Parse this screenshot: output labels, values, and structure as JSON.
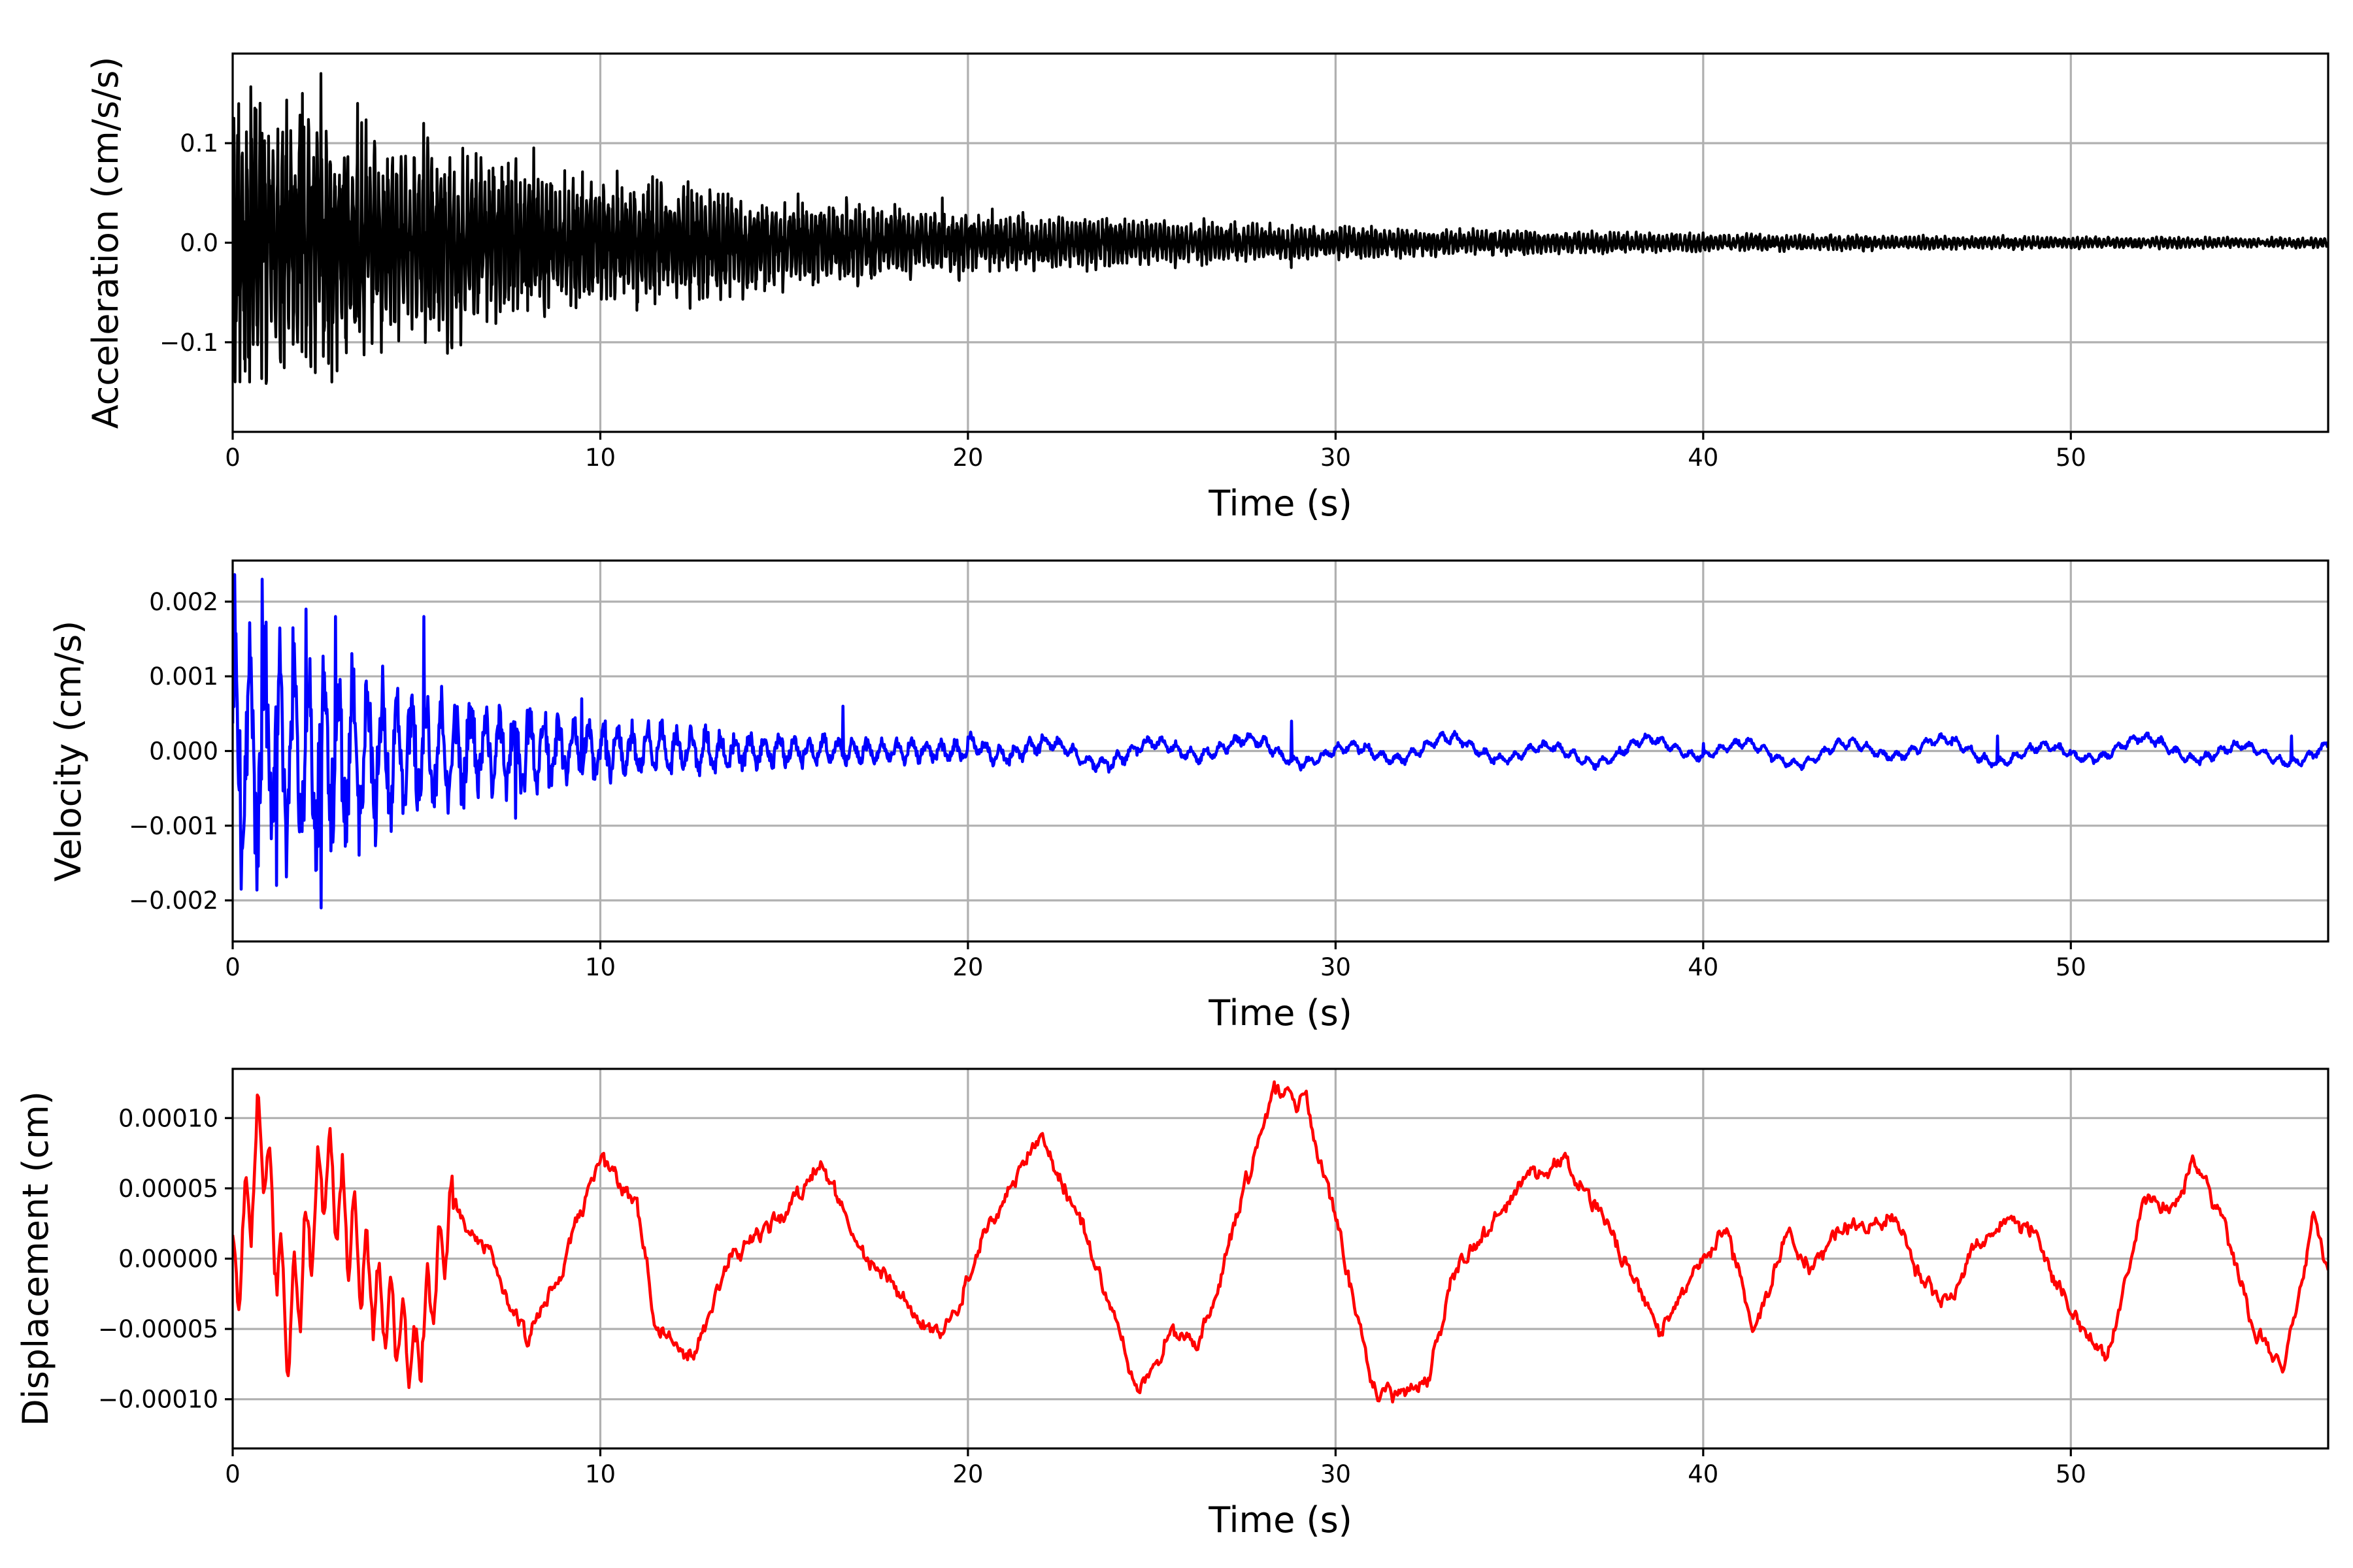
{
  "chart_data": [
    {
      "type": "line",
      "name": "acceleration",
      "title": "",
      "xlabel": "Time (s)",
      "ylabel": "Acceleration (cm/s/s)",
      "xlim": [
        0,
        57
      ],
      "ylim": [
        -0.19,
        0.19
      ],
      "xticks": [
        0,
        10,
        20,
        30,
        40,
        50
      ],
      "xtick_labels": [
        "0",
        "10",
        "20",
        "30",
        "40",
        "50"
      ],
      "yticks": [
        -0.1,
        0.0,
        0.1
      ],
      "ytick_labels": [
        "−0.1",
        "0.0",
        "0.1"
      ],
      "grid": true,
      "color": "#000000",
      "signal": {
        "peak": 0.17,
        "envelope_decay_s": 12,
        "floor": 0.004,
        "dominant_period_s": 0.12
      },
      "series": [
        {
          "values": [
            [
              0,
              0.0
            ],
            [
              0.8,
              0.11
            ],
            [
              1.3,
              -0.12
            ],
            [
              1.9,
              0.15
            ],
            [
              2.4,
              0.17
            ],
            [
              2.7,
              -0.14
            ],
            [
              3.4,
              0.14
            ],
            [
              5.2,
              0.12
            ],
            [
              7.5,
              0.08
            ],
            [
              10,
              0.04
            ],
            [
              19.3,
              0.045
            ],
            [
              28.8,
              -0.025
            ],
            [
              40,
              0.01
            ],
            [
              57,
              0.0
            ]
          ]
        }
      ]
    },
    {
      "type": "line",
      "name": "velocity",
      "title": "",
      "xlabel": "Time (s)",
      "ylabel": "Velocity (cm/s)",
      "xlim": [
        0,
        57
      ],
      "ylim": [
        -0.00255,
        0.00255
      ],
      "xticks": [
        0,
        10,
        20,
        30,
        40,
        50
      ],
      "xtick_labels": [
        "0",
        "10",
        "20",
        "30",
        "40",
        "50"
      ],
      "yticks": [
        -0.002,
        -0.001,
        0.0,
        0.001,
        0.002
      ],
      "ytick_labels": [
        "−0.002",
        "−0.001",
        "0.000",
        "0.001",
        "0.002"
      ],
      "grid": true,
      "color": "#0000ff",
      "signal": {
        "peak": 0.0023,
        "envelope_decay_s": 6,
        "floor": 8e-05,
        "dominant_period_s": 0.4
      },
      "series": [
        {
          "values": [
            [
              0,
              0.0
            ],
            [
              0.8,
              0.0023
            ],
            [
              1.2,
              -0.0018
            ],
            [
              2.0,
              0.0019
            ],
            [
              2.4,
              -0.0021
            ],
            [
              2.8,
              0.0018
            ],
            [
              5.2,
              0.0018
            ],
            [
              7.7,
              -0.0009
            ],
            [
              9.5,
              0.0007
            ],
            [
              16.6,
              0.0006
            ],
            [
              28.8,
              0.0004
            ],
            [
              40,
              0.0001
            ],
            [
              48,
              0.0002
            ],
            [
              56,
              0.0002
            ],
            [
              57,
              -5e-05
            ]
          ]
        }
      ]
    },
    {
      "type": "line",
      "name": "displacement",
      "title": "",
      "xlabel": "Time (s)",
      "ylabel": "Displacement (cm)",
      "xlim": [
        0,
        57
      ],
      "ylim": [
        -0.000135,
        0.000135
      ],
      "xticks": [
        0,
        10,
        20,
        30,
        40,
        50
      ],
      "xtick_labels": [
        "0",
        "10",
        "20",
        "30",
        "40",
        "50"
      ],
      "yticks": [
        -0.0001,
        -5e-05,
        0.0,
        5e-05,
        0.0001
      ],
      "ytick_labels": [
        "−0.00010",
        "−0.00005",
        "0.00000",
        "0.00005",
        "0.00010"
      ],
      "grid": true,
      "color": "#ff0000",
      "signal": {
        "noise_amplitude": 8e-06,
        "early_oscillation_amplitude": 4e-05,
        "early_oscillation_end_s": 6
      },
      "series": [
        {
          "values": [
            [
              0,
              -2e-05
            ],
            [
              0.8,
              9e-05
            ],
            [
              1.5,
              -5e-05
            ],
            [
              2.5,
              7e-05
            ],
            [
              4.0,
              -4e-05
            ],
            [
              5.0,
              -7e-05
            ],
            [
              6.0,
              4e-05
            ],
            [
              7.0,
              0.0
            ],
            [
              8.0,
              -6e-05
            ],
            [
              9.0,
              0.0
            ],
            [
              10.0,
              7e-05
            ],
            [
              11.0,
              4e-05
            ],
            [
              11.5,
              -5e-05
            ],
            [
              12.5,
              -7e-05
            ],
            [
              13.5,
              0.0
            ],
            [
              15.0,
              3e-05
            ],
            [
              16.0,
              7e-05
            ],
            [
              17.0,
              1e-05
            ],
            [
              18.0,
              -2e-05
            ],
            [
              19.3,
              -6e-05
            ],
            [
              20.5,
              2e-05
            ],
            [
              22.0,
              9e-05
            ],
            [
              23.0,
              3e-05
            ],
            [
              24.0,
              -4e-05
            ],
            [
              24.6,
              -0.0001
            ],
            [
              25.5,
              -5e-05
            ],
            [
              26.3,
              -6e-05
            ],
            [
              27.0,
              0.0
            ],
            [
              28.3,
              0.00012
            ],
            [
              29.2,
              0.00011
            ],
            [
              30.0,
              3e-05
            ],
            [
              31.0,
              -9e-05
            ],
            [
              31.6,
              -0.0001
            ],
            [
              32.5,
              -9e-05
            ],
            [
              33.2,
              -1e-05
            ],
            [
              34.5,
              3e-05
            ],
            [
              35.2,
              6e-05
            ],
            [
              36.2,
              7e-05
            ],
            [
              37.5,
              2e-05
            ],
            [
              38.8,
              -5e-05
            ],
            [
              39.5,
              -2e-05
            ],
            [
              40.6,
              2e-05
            ],
            [
              41.4,
              -5e-05
            ],
            [
              42.3,
              2e-05
            ],
            [
              43.0,
              -1e-05
            ],
            [
              43.6,
              2e-05
            ],
            [
              45.3,
              3e-05
            ],
            [
              46.0,
              -2e-05
            ],
            [
              46.7,
              -3e-05
            ],
            [
              47.2,
              0.0
            ],
            [
              48.4,
              3e-05
            ],
            [
              49.0,
              2e-05
            ],
            [
              50.2,
              -5e-05
            ],
            [
              51.0,
              -7e-05
            ],
            [
              52.0,
              4e-05
            ],
            [
              52.8,
              3e-05
            ],
            [
              53.3,
              7e-05
            ],
            [
              54.2,
              2e-05
            ],
            [
              55.0,
              -5e-05
            ],
            [
              55.8,
              -8e-05
            ],
            [
              56.6,
              3e-05
            ],
            [
              57.0,
              -1e-05
            ]
          ]
        }
      ]
    }
  ]
}
